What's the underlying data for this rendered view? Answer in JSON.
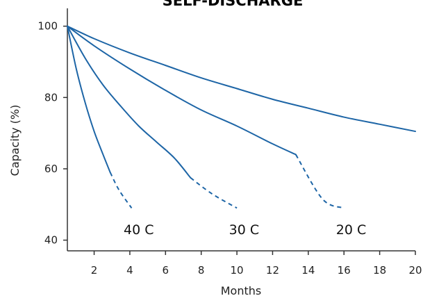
{
  "chart_data": {
    "type": "line",
    "title": "SELF-DISCHARGE",
    "xlabel": "Months",
    "ylabel": "Capacity (%)",
    "xlim": [
      0.5,
      20
    ],
    "ylim": [
      37,
      105
    ],
    "x_ticks": [
      2,
      4,
      6,
      8,
      10,
      12,
      14,
      16,
      18,
      20
    ],
    "y_ticks": [
      40,
      60,
      80,
      100
    ],
    "grid": false,
    "line_color": "#1d65a6",
    "series": [
      {
        "name": "40 C",
        "label_at": [
          4.5,
          43
        ],
        "points": [
          [
            0.5,
            100
          ],
          [
            1,
            88
          ],
          [
            1.5,
            78.5
          ],
          [
            2,
            70.5
          ],
          [
            2.5,
            64
          ],
          [
            2.9,
            59
          ]
        ],
        "dashed_points": [
          [
            2.9,
            59
          ],
          [
            3.4,
            54
          ],
          [
            4.1,
            49
          ]
        ]
      },
      {
        "name": "30 C",
        "label_at": [
          10.4,
          43
        ],
        "points": [
          [
            0.5,
            100
          ],
          [
            1.5,
            91
          ],
          [
            2.5,
            83.5
          ],
          [
            3.5,
            77.5
          ],
          [
            4.5,
            72
          ],
          [
            5.5,
            67.5
          ],
          [
            6.5,
            63
          ],
          [
            7.4,
            57.5
          ]
        ],
        "dashed_points": [
          [
            7.4,
            57.5
          ],
          [
            8.6,
            53
          ],
          [
            10,
            49
          ]
        ]
      },
      {
        "name": "20 C",
        "label_at": [
          16.4,
          43
        ],
        "points": [
          [
            0.5,
            100
          ],
          [
            2,
            94.5
          ],
          [
            4,
            88
          ],
          [
            6,
            82
          ],
          [
            8,
            76.5
          ],
          [
            10,
            72
          ],
          [
            12,
            67
          ],
          [
            13.3,
            64
          ]
        ],
        "dashed_points": [
          [
            13.3,
            64
          ],
          [
            14.8,
            51.5
          ],
          [
            16,
            49
          ]
        ]
      },
      {
        "name": "",
        "points": [
          [
            0.5,
            100
          ],
          [
            2,
            96.5
          ],
          [
            4,
            92.5
          ],
          [
            6,
            89
          ],
          [
            8,
            85.5
          ],
          [
            10,
            82.5
          ],
          [
            12,
            79.5
          ],
          [
            14,
            77
          ],
          [
            16,
            74.5
          ],
          [
            18,
            72.5
          ],
          [
            20,
            70.5
          ]
        ],
        "dashed_points": []
      }
    ]
  }
}
